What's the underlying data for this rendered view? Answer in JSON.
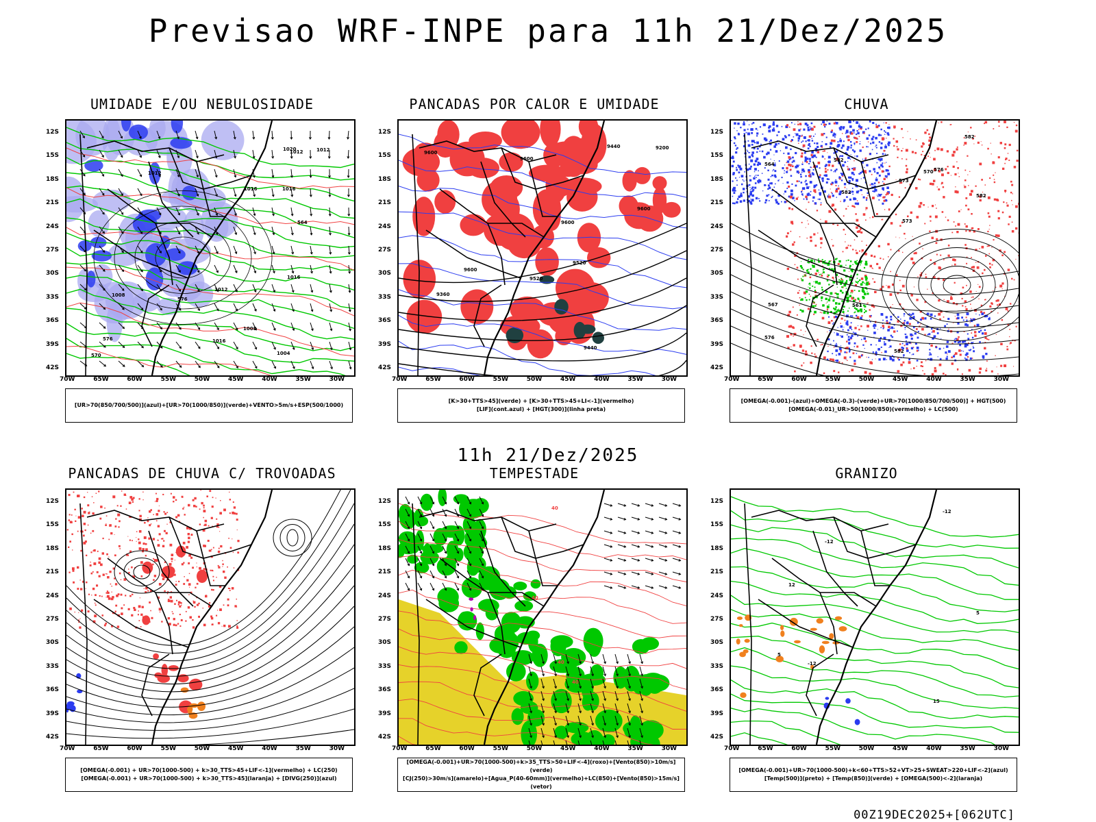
{
  "title": "Previsao WRF-INPE  para 11h 21/Dez/2025",
  "subtitle": "11h 21/Dez/2025",
  "run_info": "00Z19DEC2025+[062UTC]",
  "lat_labels": [
    "12S",
    "15S",
    "18S",
    "21S",
    "24S",
    "27S",
    "30S",
    "33S",
    "36S",
    "39S",
    "42S"
  ],
  "lon_labels": [
    "70W",
    "65W",
    "60W",
    "55W",
    "50W",
    "45W",
    "40W",
    "35W",
    "30W"
  ],
  "colors": {
    "blue": "#2b3cf0",
    "light_blue": "#a9a9f0",
    "green": "#00c800",
    "red": "#f04040",
    "dark_teal": "#204040",
    "yellow": "#e6d22a",
    "orange": "#f0801e",
    "purple": "#b000b0"
  },
  "panels": [
    {
      "title": "UMIDADE E/OU NEBULOSIDADE",
      "legend": [
        "[UR>70(850/700/500)](azul)+[UR>70(1000/850)](verde)+VENTO>5m/s+ESP(500/1000)"
      ],
      "labels": [
        "1012",
        "1012",
        "1012",
        "1016",
        "1016",
        "1016",
        "1020",
        "1004",
        "1008",
        "1008",
        "1012",
        "1016",
        "576",
        "576",
        "564",
        "570"
      ]
    },
    {
      "title": "PANCADAS POR CALOR E UMIDADE",
      "legend": [
        "[K>30+TTS>45](verde) + [K>30+TTS>45+LI<-1](vermelho)",
        "[LIF](cont.azul) + [HGT(300)](linha preta)"
      ],
      "labels": [
        "9600",
        "9600",
        "9520",
        "9600",
        "9600",
        "9440",
        "9200",
        "9360",
        "9520",
        "9440",
        "9600"
      ]
    },
    {
      "title": "CHUVA",
      "legend": [
        "[OMEGA(-0.001)-(azul)+OMEGA(-0.3)-(verde)+UR>70(1000/850/700/500)] + HGT(500)",
        "[OMEGA(-0.01)_UR>50(1000/850)(vermelho) + LC(500)"
      ],
      "labels": [
        "582",
        "582",
        "582",
        "582",
        "576",
        "573",
        "570",
        "567",
        "564",
        "561",
        "576",
        "573",
        "582"
      ]
    },
    {
      "title": "PANCADAS DE CHUVA C/ TROVOADAS",
      "legend": [
        "[OMEGA(-0.001) + UR>70(1000-500) + k>30_TTS>45+LIF<-1](vermelho) + LC(250)",
        "[OMEGA(-0.001) + UR>70(1000-500) + k>30_TTS>45](laranja) + [DIVG(250)](azul)"
      ],
      "labels": []
    },
    {
      "title": "TEMPESTADE",
      "legend": [
        "[OMEGA(-0.001)+UR>70(1000-500)+k>35_TTS>50+LIF<-4](roxo)+[Vento(850)>10m/s](verde)",
        "[CJ(250)>30m/s](amarelo)+[Agua_P(40-60mm)](vermelho)+LC(850)+[Vento(850)>15m/s](vetor)"
      ],
      "labels": [
        "40",
        "40",
        "40",
        "40"
      ]
    },
    {
      "title": "GRANIZO",
      "legend": [
        "[OMEGA(-0.001)+UR>70(1000-500)+k<60+TTS>52+VT>25+SWEAT>220+LIF<-2](azul)",
        "[Temp(500)](preto) + [Temp(850)](verde) + [OMEGA(500)<-2](laranja)"
      ],
      "labels": [
        "-12",
        "-12",
        "-12",
        "15",
        "12",
        "5",
        "5"
      ]
    }
  ]
}
